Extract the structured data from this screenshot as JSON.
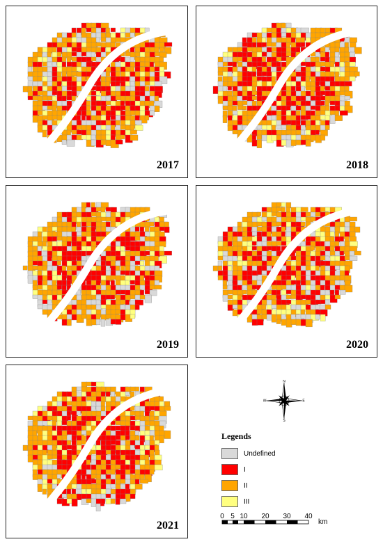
{
  "panels": [
    {
      "id": "p2017",
      "year": "2017"
    },
    {
      "id": "p2018",
      "year": "2018"
    },
    {
      "id": "p2019",
      "year": "2019"
    },
    {
      "id": "p2020",
      "year": "2020"
    },
    {
      "id": "p2021",
      "year": "2021"
    }
  ],
  "compass": {
    "north": "N",
    "south": "S",
    "east": "E",
    "west": "W"
  },
  "legend": {
    "title": "Legends",
    "items": [
      {
        "label": "Undefined",
        "color": "#d9d9d9"
      },
      {
        "label": "I",
        "color": "#ff0000"
      },
      {
        "label": "II",
        "color": "#ffa500"
      },
      {
        "label": "III",
        "color": "#ffff80"
      }
    ]
  },
  "scalebar": {
    "ticks": [
      "0",
      "5",
      "10",
      "20",
      "30",
      "40"
    ],
    "unit": "km"
  },
  "colors": {
    "river": "#ffffff",
    "outline": "#808080"
  }
}
